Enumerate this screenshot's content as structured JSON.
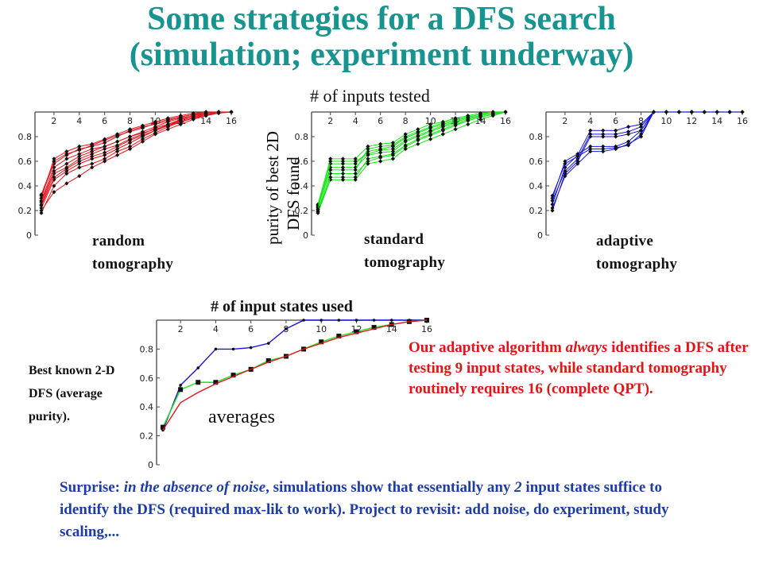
{
  "title": {
    "line1": "Some strategies for a DFS search",
    "line2": "(simulation; experiment underway)"
  },
  "labels": {
    "x_small": "# of inputs tested",
    "y_small_line1": "purity of best 2D",
    "y_small_line2": "DFS found",
    "x_avg": "# of input states used",
    "averages": "averages",
    "best_known": "Best known 2-D DFS (average purity)."
  },
  "captions": [
    {
      "line1": "random",
      "line2": "tomography"
    },
    {
      "line1": "standard",
      "line2": "tomography"
    },
    {
      "line1": "adaptive",
      "line2": "tomography"
    }
  ],
  "note": {
    "pre": "Our adaptive algorithm ",
    "emph": "always",
    "post": " identifies a DFS after testing 9 input states, while standard tomography routinely requires 16 (complete QPT)."
  },
  "surprise": {
    "lead": "Surprise: ",
    "emph1": "in the absence of noise",
    "mid1": ", simulations show that essentially any ",
    "emph2": "2",
    "mid2": " input states suffice to identify the DFS (required max-lik to work).  Project to revisit: add noise, do experiment, study scaling,..."
  },
  "colors": {
    "title": "#17948f",
    "random": "#e8141c",
    "standard": "#19e619",
    "adaptive": "#1414e6",
    "note": "#e01515",
    "surprise": "#1c3da5"
  },
  "chart_data": [
    {
      "type": "line",
      "caption": "random tomography",
      "x": [
        1,
        2,
        3,
        4,
        5,
        6,
        7,
        8,
        9,
        10,
        11,
        12,
        13,
        14,
        15,
        16
      ],
      "xticks": [
        2,
        4,
        6,
        8,
        10,
        12,
        14,
        16
      ],
      "yticks": [
        0,
        0.2,
        0.4,
        0.6,
        0.8
      ],
      "ylim": [
        0,
        1
      ],
      "series": [
        {
          "values": [
            0.28,
            0.55,
            0.62,
            0.66,
            0.7,
            0.72,
            0.76,
            0.8,
            0.83,
            0.86,
            0.89,
            0.92,
            0.95,
            0.97,
            0.99,
            1.0
          ]
        },
        {
          "values": [
            0.18,
            0.4,
            0.5,
            0.55,
            0.58,
            0.62,
            0.68,
            0.72,
            0.78,
            0.83,
            0.88,
            0.92,
            0.95,
            0.98,
            1.0,
            1.0
          ]
        },
        {
          "values": [
            0.32,
            0.58,
            0.65,
            0.7,
            0.72,
            0.75,
            0.8,
            0.85,
            0.88,
            0.9,
            0.93,
            0.96,
            0.98,
            1.0,
            1.0,
            1.0
          ]
        },
        {
          "values": [
            0.22,
            0.45,
            0.52,
            0.58,
            0.62,
            0.65,
            0.7,
            0.75,
            0.8,
            0.85,
            0.9,
            0.93,
            0.96,
            0.99,
            1.0,
            1.0
          ]
        },
        {
          "values": [
            0.25,
            0.5,
            0.55,
            0.62,
            0.66,
            0.7,
            0.73,
            0.78,
            0.82,
            0.87,
            0.9,
            0.94,
            0.97,
            1.0,
            1.0,
            1.0
          ]
        },
        {
          "values": [
            0.3,
            0.62,
            0.68,
            0.72,
            0.74,
            0.78,
            0.82,
            0.86,
            0.89,
            0.92,
            0.95,
            0.97,
            0.99,
            1.0,
            1.0,
            1.0
          ]
        },
        {
          "values": [
            0.2,
            0.35,
            0.42,
            0.48,
            0.55,
            0.6,
            0.65,
            0.7,
            0.76,
            0.82,
            0.86,
            0.9,
            0.94,
            0.97,
            1.0,
            1.0
          ]
        },
        {
          "values": [
            0.27,
            0.52,
            0.58,
            0.64,
            0.68,
            0.72,
            0.76,
            0.8,
            0.84,
            0.88,
            0.92,
            0.95,
            0.97,
            0.99,
            1.0,
            1.0
          ]
        },
        {
          "values": [
            0.24,
            0.47,
            0.54,
            0.6,
            0.64,
            0.67,
            0.72,
            0.77,
            0.81,
            0.85,
            0.89,
            0.93,
            0.96,
            0.98,
            1.0,
            1.0
          ]
        },
        {
          "values": [
            0.33,
            0.6,
            0.66,
            0.69,
            0.73,
            0.77,
            0.81,
            0.84,
            0.87,
            0.91,
            0.94,
            0.96,
            0.98,
            1.0,
            1.0,
            1.0
          ]
        }
      ]
    },
    {
      "type": "line",
      "caption": "standard tomography",
      "x": [
        1,
        2,
        3,
        4,
        5,
        6,
        7,
        8,
        9,
        10,
        11,
        12,
        13,
        14,
        15,
        16
      ],
      "xticks": [
        2,
        4,
        6,
        8,
        10,
        12,
        14,
        16
      ],
      "yticks": [
        0,
        0.2,
        0.4,
        0.6,
        0.8
      ],
      "ylim": [
        0,
        1
      ],
      "series": [
        {
          "values": [
            0.18,
            0.45,
            0.45,
            0.45,
            0.58,
            0.6,
            0.62,
            0.7,
            0.74,
            0.78,
            0.82,
            0.86,
            0.9,
            0.94,
            0.97,
            1.0
          ]
        },
        {
          "values": [
            0.22,
            0.55,
            0.55,
            0.55,
            0.65,
            0.67,
            0.68,
            0.76,
            0.8,
            0.84,
            0.88,
            0.91,
            0.94,
            0.97,
            0.99,
            1.0
          ]
        },
        {
          "values": [
            0.25,
            0.62,
            0.62,
            0.62,
            0.72,
            0.74,
            0.75,
            0.82,
            0.86,
            0.9,
            0.92,
            0.95,
            0.97,
            0.99,
            1.0,
            1.0
          ]
        },
        {
          "values": [
            0.2,
            0.5,
            0.5,
            0.5,
            0.6,
            0.63,
            0.65,
            0.72,
            0.77,
            0.81,
            0.85,
            0.89,
            0.93,
            0.96,
            0.98,
            1.0
          ]
        },
        {
          "values": [
            0.24,
            0.58,
            0.58,
            0.58,
            0.68,
            0.7,
            0.72,
            0.79,
            0.83,
            0.87,
            0.9,
            0.93,
            0.96,
            0.98,
            1.0,
            1.0
          ]
        },
        {
          "values": [
            0.19,
            0.47,
            0.47,
            0.47,
            0.62,
            0.64,
            0.66,
            0.73,
            0.78,
            0.82,
            0.86,
            0.9,
            0.93,
            0.96,
            0.98,
            1.0
          ]
        },
        {
          "values": [
            0.23,
            0.53,
            0.53,
            0.53,
            0.7,
            0.72,
            0.73,
            0.8,
            0.84,
            0.88,
            0.91,
            0.94,
            0.96,
            0.98,
            1.0,
            1.0
          ]
        },
        {
          "values": [
            0.21,
            0.6,
            0.6,
            0.6,
            0.66,
            0.69,
            0.7,
            0.77,
            0.81,
            0.85,
            0.89,
            0.92,
            0.95,
            0.97,
            0.99,
            1.0
          ]
        }
      ]
    },
    {
      "type": "line",
      "caption": "adaptive tomography",
      "x": [
        1,
        2,
        3,
        4,
        5,
        6,
        7,
        8,
        9,
        10,
        11,
        12,
        13,
        14,
        15,
        16
      ],
      "xticks": [
        2,
        4,
        6,
        8,
        10,
        12,
        14,
        16
      ],
      "yticks": [
        0,
        0.2,
        0.4,
        0.6,
        0.8
      ],
      "ylim": [
        0,
        1
      ],
      "series": [
        {
          "values": [
            0.2,
            0.5,
            0.6,
            0.8,
            0.8,
            0.8,
            0.82,
            0.85,
            1.0,
            1.0,
            1.0,
            1.0,
            1.0,
            1.0,
            1.0,
            1.0
          ]
        },
        {
          "values": [
            0.25,
            0.55,
            0.65,
            0.85,
            0.85,
            0.85,
            0.88,
            0.9,
            1.0,
            1.0,
            1.0,
            1.0,
            1.0,
            1.0,
            1.0,
            1.0
          ]
        },
        {
          "values": [
            0.3,
            0.6,
            0.66,
            0.72,
            0.72,
            0.72,
            0.76,
            0.85,
            1.0,
            1.0,
            1.0,
            1.0,
            1.0,
            1.0,
            1.0,
            1.0
          ]
        },
        {
          "values": [
            0.22,
            0.48,
            0.58,
            0.68,
            0.68,
            0.7,
            0.74,
            0.8,
            1.0,
            1.0,
            1.0,
            1.0,
            1.0,
            1.0,
            1.0,
            1.0
          ]
        },
        {
          "values": [
            0.28,
            0.52,
            0.62,
            0.82,
            0.82,
            0.82,
            0.84,
            0.88,
            1.0,
            1.0,
            1.0,
            1.0,
            1.0,
            1.0,
            1.0,
            1.0
          ]
        },
        {
          "values": [
            0.32,
            0.58,
            0.64,
            0.7,
            0.7,
            0.71,
            0.73,
            0.82,
            1.0,
            1.0,
            1.0,
            1.0,
            1.0,
            1.0,
            1.0,
            1.0
          ]
        }
      ]
    },
    {
      "type": "line",
      "caption": "averages",
      "x": [
        1,
        2,
        3,
        4,
        5,
        6,
        7,
        8,
        9,
        10,
        11,
        12,
        13,
        14,
        15,
        16
      ],
      "xticks": [
        2,
        4,
        6,
        8,
        10,
        12,
        14,
        16
      ],
      "yticks": [
        0,
        0.2,
        0.4,
        0.6,
        0.8
      ],
      "ylim": [
        0,
        1
      ],
      "series": [
        {
          "marker": "dot",
          "values": [
            0.24,
            0.55,
            0.67,
            0.8,
            0.8,
            0.81,
            0.84,
            0.94,
            1.0,
            1.0,
            1.0,
            1.0,
            1.0,
            1.0,
            1.0,
            1.0
          ]
        },
        {
          "marker": "square",
          "values": [
            0.26,
            0.52,
            0.57,
            0.57,
            0.62,
            0.66,
            0.72,
            0.75,
            0.8,
            0.85,
            0.89,
            0.92,
            0.95,
            0.97,
            0.99,
            1.0
          ]
        },
        {
          "marker": "none",
          "values": [
            0.24,
            0.43,
            0.5,
            0.56,
            0.61,
            0.66,
            0.71,
            0.75,
            0.8,
            0.84,
            0.88,
            0.91,
            0.94,
            0.97,
            0.99,
            1.0
          ]
        }
      ]
    }
  ]
}
